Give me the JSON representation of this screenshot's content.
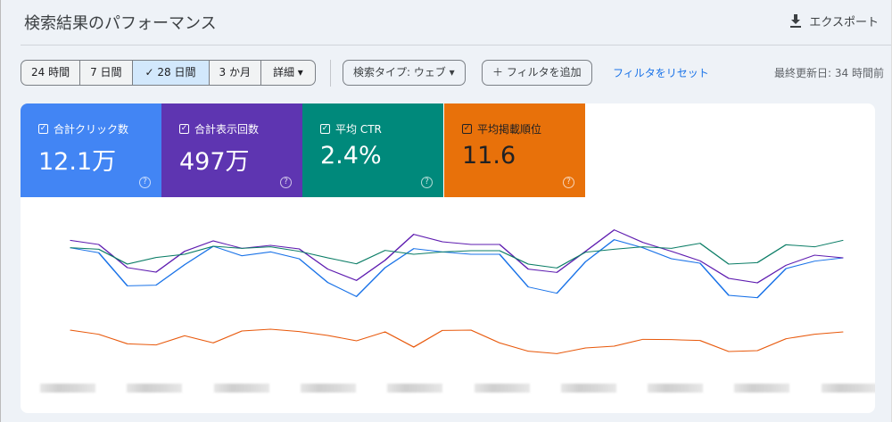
{
  "header": {
    "title": "検索結果のパフォーマンス",
    "export_label": "エクスポート",
    "export_icon": "download-icon"
  },
  "filters": {
    "date_ranges": [
      {
        "label": "24 時間",
        "selected": false
      },
      {
        "label": "7 日間",
        "selected": false
      },
      {
        "label": "✓  28 日間",
        "selected": true
      },
      {
        "label": "3 か月",
        "selected": false
      },
      {
        "label": "詳細 ▾",
        "selected": false
      }
    ],
    "search_type": "検索タイプ: ウェブ ▾",
    "add_filter": "＋  フィルタを追加",
    "reset_filter": "フィルタをリセット",
    "last_updated": "最終更新日: 34 時間前"
  },
  "metrics": [
    {
      "label": "合計クリック数",
      "value": "12.1万",
      "color": "#4285f4",
      "checked": true
    },
    {
      "label": "合計表示回数",
      "value": "497万",
      "color": "#5e35b1",
      "checked": true
    },
    {
      "label": "平均 CTR",
      "value": "2.4%",
      "color": "#00897b",
      "checked": true
    },
    {
      "label": "平均掲載順位",
      "value": "11.6",
      "color": "#e8710a",
      "checked": true
    }
  ],
  "chart_data": {
    "type": "line",
    "title": "",
    "xlabel": "",
    "ylabel": "",
    "grid": false,
    "legend": "none",
    "ylim": [
      0,
      100
    ],
    "x_count": 28,
    "series": [
      {
        "metric": "clicks",
        "color": "#1a73e8",
        "values": [
          77.4,
          74,
          51.8,
          52.2,
          66,
          78.4,
          72,
          74.6,
          70,
          54,
          44.6,
          64,
          76.8,
          74.6,
          73,
          73,
          51,
          46.8,
          68,
          82.8,
          77.4,
          70,
          67,
          45.4,
          43.8,
          63.4,
          68.4,
          70.6
        ]
      },
      {
        "metric": "impressions",
        "color": "#5e1cb0",
        "values": [
          82.4,
          79.6,
          64,
          61,
          75,
          82,
          77,
          79,
          76.6,
          63,
          55.4,
          69,
          86.4,
          81.4,
          79.6,
          79.6,
          63,
          60.8,
          75,
          89.4,
          81,
          75,
          68.6,
          56.8,
          53.8,
          65.6,
          72.4,
          70.6
        ]
      },
      {
        "metric": "ctr",
        "color": "#0b7d66",
        "values": [
          77.4,
          76.4,
          66.4,
          70.8,
          73,
          78.4,
          77,
          78,
          75,
          70.6,
          66.6,
          75.6,
          73,
          74.6,
          75.4,
          75.4,
          66.4,
          63.8,
          74.4,
          76.4,
          78,
          77,
          80.4,
          66.4,
          67.4,
          79.4,
          78,
          82.4
        ]
      },
      {
        "metric": "position",
        "color": "#e8590c",
        "values": [
          22,
          19.2,
          12.8,
          12,
          18.2,
          13.4,
          21.4,
          22.6,
          21,
          18.4,
          14.8,
          20.8,
          10.6,
          21.8,
          22,
          13.4,
          7.8,
          6.2,
          10,
          11.2,
          15.8,
          15.6,
          15,
          7.6,
          8.2,
          16.2,
          19.2,
          20.8
        ]
      }
    ]
  }
}
